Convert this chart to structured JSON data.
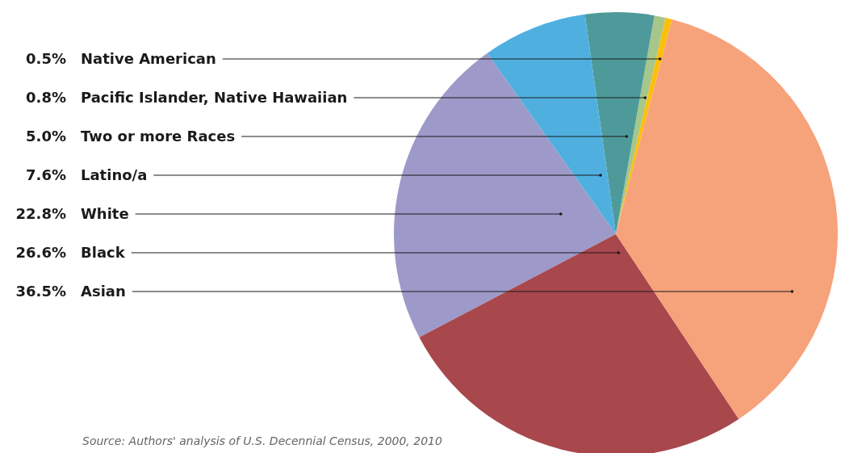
{
  "chart_data": {
    "type": "pie",
    "categories": [
      "Native American",
      "Pacific Islander, Native Hawaiian",
      "Two or more Races",
      "Latino/a",
      "White",
      "Black",
      "Asian"
    ],
    "values": [
      0.5,
      0.8,
      5.0,
      7.6,
      22.8,
      26.6,
      36.5
    ],
    "value_labels": [
      "0.5%",
      "0.8%",
      "5.0%",
      "7.6%",
      "22.8%",
      "26.6%",
      "36.5%"
    ],
    "colors": [
      "#fbbf0e",
      "#a6c68a",
      "#4e9a9a",
      "#4fb0e0",
      "#9d9ac9",
      "#a8474c",
      "#f6a27b"
    ],
    "annotations": [
      "Source: Authors' analysis of U.S. Decennial Census, 2000, 2010"
    ]
  }
}
